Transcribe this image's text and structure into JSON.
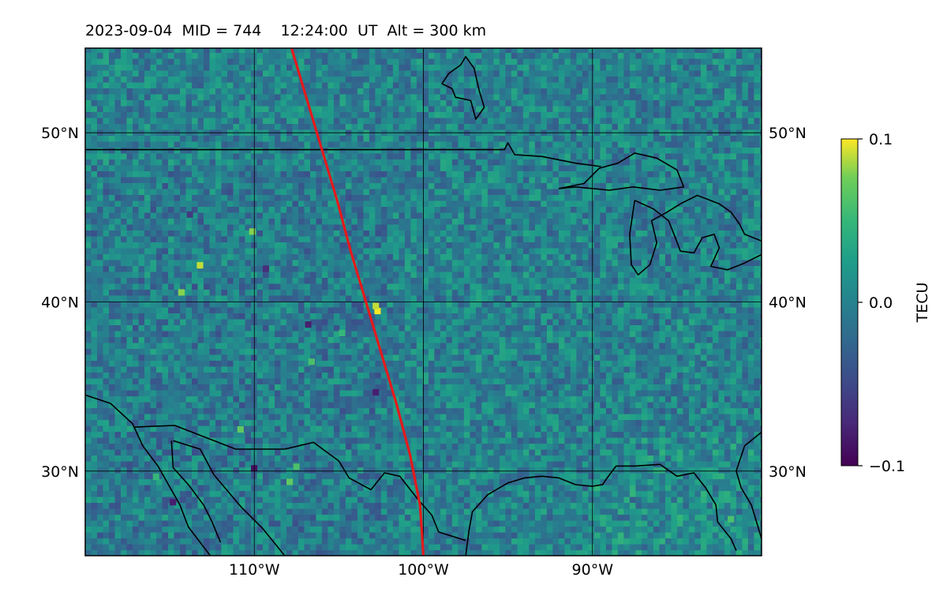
{
  "figure": {
    "title": "2023-09-04  MID = 744    12:24:00  UT  Alt = 300 km"
  },
  "chart_data": {
    "type": "heatmap",
    "title": "2023-09-04  MID = 744    12:24:00  UT  Alt = 300 km",
    "map_extent": {
      "lon": [
        -120,
        -80
      ],
      "lat": [
        25,
        55
      ]
    },
    "x_ticks": [
      {
        "value": -110,
        "label": "110°W"
      },
      {
        "value": -100,
        "label": "100°W"
      },
      {
        "value": -90,
        "label": "90°W"
      }
    ],
    "y_ticks": [
      {
        "value": 50,
        "label": "50°N"
      },
      {
        "value": 40,
        "label": "40°N"
      },
      {
        "value": 30,
        "label": "30°N"
      }
    ],
    "grid": true,
    "colorbar": {
      "label": "TECU",
      "colormap": "viridis",
      "range": [
        -0.1,
        0.1
      ],
      "ticks": [
        {
          "value": 0.1,
          "label": "0.1"
        },
        {
          "value": 0.0,
          "label": "0.0"
        },
        {
          "value": -0.1,
          "label": "−0.1"
        }
      ]
    },
    "track": {
      "color": "#e41a1c",
      "points": [
        [
          -107.8,
          55.0
        ],
        [
          -106.9,
          52.0
        ],
        [
          -106.0,
          49.0
        ],
        [
          -105.1,
          46.0
        ],
        [
          -104.3,
          43.0
        ],
        [
          -103.4,
          40.0
        ],
        [
          -102.5,
          37.0
        ],
        [
          -101.6,
          34.0
        ],
        [
          -100.8,
          31.0
        ],
        [
          -100.2,
          28.0
        ],
        [
          -100.0,
          25.0
        ]
      ]
    },
    "field_statistics": {
      "mean": 0.0,
      "spread": 0.035
    },
    "hotspots": [
      {
        "lon": -102.9,
        "lat": 39.3,
        "value": 0.1
      },
      {
        "lon": -103.0,
        "lat": 39.6,
        "value": 0.09
      },
      {
        "lon": -113.4,
        "lat": 42.0,
        "value": 0.09
      },
      {
        "lon": -114.5,
        "lat": 40.4,
        "value": 0.08
      },
      {
        "lon": -110.3,
        "lat": 44.0,
        "value": 0.08
      },
      {
        "lon": -111.0,
        "lat": 32.3,
        "value": 0.07
      },
      {
        "lon": -108.1,
        "lat": 29.2,
        "value": 0.07
      },
      {
        "lon": -107.7,
        "lat": 30.1,
        "value": 0.06
      },
      {
        "lon": -116.0,
        "lat": 29.5,
        "value": 0.05
      },
      {
        "lon": -82.0,
        "lat": 27.0,
        "value": 0.06
      },
      {
        "lon": -106.8,
        "lat": 36.3,
        "value": 0.06
      },
      {
        "lon": -105.0,
        "lat": 38.0,
        "value": 0.05
      }
    ],
    "coldspots": [
      {
        "lon": -110.2,
        "lat": 30.0,
        "value": -0.09
      },
      {
        "lon": -115.0,
        "lat": 28.0,
        "value": -0.08
      },
      {
        "lon": -107.0,
        "lat": 38.5,
        "value": -0.08
      },
      {
        "lon": -109.5,
        "lat": 41.8,
        "value": -0.07
      },
      {
        "lon": -103.0,
        "lat": 34.5,
        "value": -0.08
      },
      {
        "lon": -114.0,
        "lat": 45.0,
        "value": -0.06
      }
    ],
    "coastlines": {
      "border_49": [
        [
          -120,
          49.0
        ],
        [
          -95.2,
          49.0
        ],
        [
          -95.0,
          49.4
        ],
        [
          -94.6,
          48.7
        ],
        [
          -93.0,
          48.6
        ],
        [
          -91.0,
          48.2
        ],
        [
          -89.5,
          48.0
        ]
      ],
      "great_lakes": [
        [
          [
            -92.0,
            46.7
          ],
          [
            -90.5,
            47.0
          ],
          [
            -89.6,
            47.9
          ],
          [
            -88.5,
            48.2
          ],
          [
            -87.5,
            48.8
          ],
          [
            -86.2,
            48.5
          ],
          [
            -85.0,
            47.8
          ],
          [
            -84.6,
            46.8
          ],
          [
            -86.0,
            46.6
          ],
          [
            -87.6,
            46.8
          ],
          [
            -89.0,
            46.6
          ],
          [
            -91.0,
            46.8
          ],
          [
            -92.0,
            46.7
          ]
        ],
        [
          [
            -87.5,
            46.0
          ],
          [
            -86.4,
            45.5
          ],
          [
            -85.5,
            44.8
          ],
          [
            -85.1,
            43.8
          ],
          [
            -84.8,
            43.0
          ],
          [
            -84.0,
            42.9
          ],
          [
            -83.5,
            43.8
          ],
          [
            -82.8,
            44.0
          ],
          [
            -82.5,
            43.2
          ],
          [
            -83.0,
            42.1
          ],
          [
            -82.0,
            41.9
          ],
          [
            -81.0,
            42.3
          ],
          [
            -80.0,
            42.8
          ]
        ],
        [
          [
            -87.5,
            46.0
          ],
          [
            -87.8,
            44.0
          ],
          [
            -87.7,
            42.2
          ],
          [
            -87.3,
            41.6
          ],
          [
            -86.6,
            42.2
          ],
          [
            -86.2,
            43.5
          ],
          [
            -86.5,
            44.8
          ],
          [
            -85.6,
            45.3
          ],
          [
            -84.8,
            45.8
          ]
        ],
        [
          [
            -84.8,
            45.8
          ],
          [
            -83.8,
            46.3
          ],
          [
            -82.5,
            45.8
          ],
          [
            -81.8,
            45.3
          ],
          [
            -81.3,
            44.6
          ],
          [
            -81.0,
            44.0
          ],
          [
            -80.0,
            43.6
          ]
        ]
      ],
      "lake_winnipeg": [
        [
          -98.5,
          53.5
        ],
        [
          -97.8,
          54.0
        ],
        [
          -97.5,
          54.5
        ],
        [
          -97.0,
          53.8
        ],
        [
          -96.7,
          52.5
        ],
        [
          -96.4,
          51.5
        ],
        [
          -96.9,
          50.8
        ],
        [
          -97.2,
          51.9
        ],
        [
          -98.1,
          52.1
        ],
        [
          -98.3,
          52.6
        ],
        [
          -98.9,
          52.9
        ],
        [
          -98.5,
          53.5
        ]
      ],
      "gulf": [
        [
          -97.5,
          25.0
        ],
        [
          -97.3,
          26.5
        ],
        [
          -97.1,
          27.6
        ],
        [
          -96.2,
          28.6
        ],
        [
          -95.0,
          29.3
        ],
        [
          -94.0,
          29.6
        ],
        [
          -93.0,
          29.7
        ],
        [
          -92.0,
          29.6
        ],
        [
          -91.0,
          29.2
        ],
        [
          -90.0,
          29.1
        ],
        [
          -89.4,
          29.2
        ],
        [
          -89.2,
          29.5
        ],
        [
          -88.6,
          30.3
        ],
        [
          -87.5,
          30.3
        ],
        [
          -86.0,
          30.4
        ],
        [
          -85.0,
          29.7
        ],
        [
          -84.0,
          29.9
        ],
        [
          -83.3,
          29.0
        ],
        [
          -82.7,
          28.0
        ],
        [
          -82.6,
          27.0
        ],
        [
          -81.8,
          26.0
        ],
        [
          -81.5,
          25.3
        ]
      ],
      "atlantic": [
        [
          -80.0,
          32.3
        ],
        [
          -81.0,
          31.5
        ],
        [
          -81.5,
          30.0
        ],
        [
          -81.2,
          29.0
        ],
        [
          -80.6,
          28.0
        ],
        [
          -80.3,
          27.0
        ],
        [
          -80.0,
          26.0
        ]
      ],
      "mexico_border": [
        [
          -117.1,
          32.6
        ],
        [
          -114.7,
          32.7
        ],
        [
          -111.1,
          31.3
        ],
        [
          -108.2,
          31.3
        ],
        [
          -106.5,
          31.7
        ],
        [
          -105.0,
          30.6
        ],
        [
          -104.4,
          29.6
        ],
        [
          -103.1,
          28.9
        ],
        [
          -102.3,
          29.9
        ],
        [
          -101.4,
          29.7
        ],
        [
          -100.3,
          28.3
        ],
        [
          -99.5,
          27.4
        ],
        [
          -99.1,
          26.4
        ],
        [
          -97.5,
          25.9
        ]
      ],
      "baja_west": [
        [
          -120.0,
          34.5
        ],
        [
          -118.5,
          34.0
        ],
        [
          -117.2,
          32.8
        ],
        [
          -116.6,
          31.5
        ],
        [
          -115.7,
          30.3
        ],
        [
          -114.4,
          28.0
        ],
        [
          -113.9,
          26.7
        ],
        [
          -112.6,
          25.0
        ]
      ],
      "gulf_of_california": [
        [
          -114.9,
          31.8
        ],
        [
          -114.8,
          30.2
        ],
        [
          -113.9,
          29.2
        ],
        [
          -113.0,
          28.0
        ],
        [
          -112.5,
          27.0
        ],
        [
          -112.0,
          25.8
        ]
      ],
      "mexico_mainland": [
        [
          -114.8,
          31.8
        ],
        [
          -113.2,
          31.3
        ],
        [
          -112.4,
          29.8
        ],
        [
          -110.8,
          27.9
        ],
        [
          -109.5,
          26.6
        ],
        [
          -108.2,
          25.0
        ]
      ]
    }
  }
}
